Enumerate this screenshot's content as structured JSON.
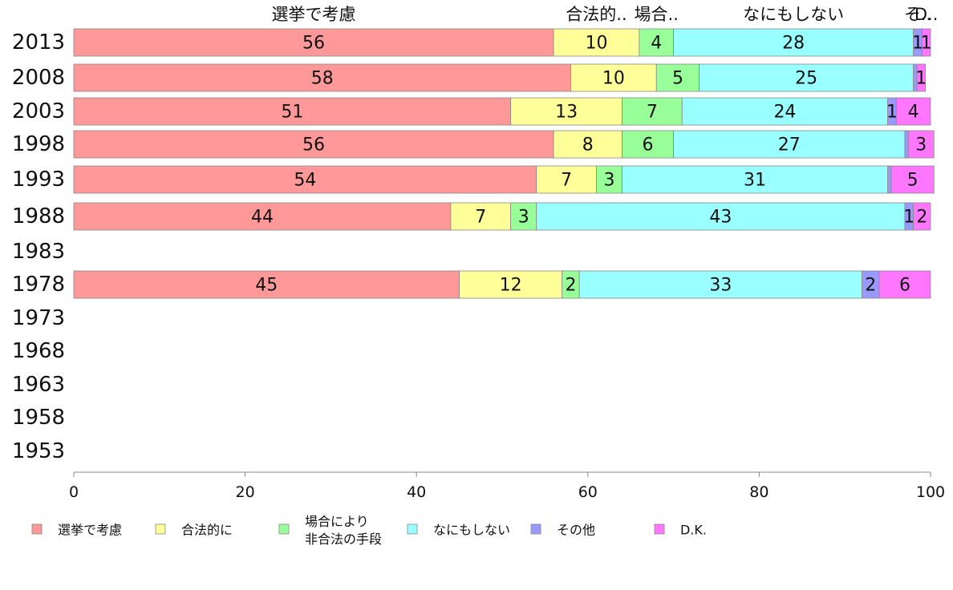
{
  "chart_data": {
    "type": "bar",
    "orientation": "horizontal",
    "stacked": true,
    "categories": [
      "2013",
      "2008",
      "2003",
      "1998",
      "1993",
      "1988",
      "1983",
      "1978",
      "1973",
      "1968",
      "1963",
      "1958",
      "1953"
    ],
    "series": [
      {
        "name": "選挙で考慮",
        "color": "#ff9999",
        "values": [
          56,
          58,
          51,
          56,
          54,
          44,
          null,
          45,
          null,
          null,
          null,
          null,
          null
        ]
      },
      {
        "name": "合法的に",
        "color": "#ffff99",
        "values": [
          10,
          10,
          13,
          8,
          7,
          7,
          null,
          12,
          null,
          null,
          null,
          null,
          null
        ]
      },
      {
        "name": "場合により 非合法の手段",
        "name_lines": [
          "場合により",
          "非合法の手段"
        ],
        "color": "#99ff99",
        "values": [
          4,
          5,
          7,
          6,
          3,
          3,
          null,
          2,
          null,
          null,
          null,
          null,
          null
        ]
      },
      {
        "name": "なにもしない",
        "color": "#99ffff",
        "values": [
          28,
          25,
          24,
          27,
          31,
          43,
          null,
          33,
          null,
          null,
          null,
          null,
          null
        ]
      },
      {
        "name": "その他",
        "color": "#9999ff",
        "values": [
          1,
          0.4,
          1,
          0.4,
          0.4,
          1,
          null,
          2,
          null,
          null,
          null,
          null,
          null
        ]
      },
      {
        "name": "D.K.",
        "color": "#ff77ff",
        "values": [
          1,
          1,
          4,
          3,
          5,
          2,
          null,
          6,
          null,
          null,
          null,
          null,
          null
        ]
      }
    ],
    "data_labels": [
      [
        "56",
        "10",
        "4",
        "28",
        "1",
        "1"
      ],
      [
        "58",
        "10",
        "5",
        "25",
        "",
        "1"
      ],
      [
        "51",
        "13",
        "7",
        "24",
        "1",
        "4"
      ],
      [
        "56",
        "8",
        "6",
        "27",
        "",
        "3"
      ],
      [
        "54",
        "7",
        "3",
        "31",
        "",
        "5"
      ],
      [
        "44",
        "7",
        "3",
        "43",
        "1",
        "2"
      ],
      [
        "",
        "",
        "",
        "",
        "",
        ""
      ],
      [
        "45",
        "12",
        "2",
        "33",
        "2",
        "6"
      ],
      [
        "",
        "",
        "",
        "",
        "",
        ""
      ],
      [
        "",
        "",
        "",
        "",
        "",
        ""
      ],
      [
        "",
        "",
        "",
        "",
        "",
        ""
      ],
      [
        "",
        "",
        "",
        "",
        "",
        ""
      ],
      [
        "",
        "",
        "",
        "",
        "",
        ""
      ]
    ],
    "top_labels": [
      "選挙で考慮",
      "合法的..",
      "場合..",
      "なにもしない",
      "そ..",
      "D.."
    ],
    "xlim": [
      0,
      100
    ],
    "xticks": [
      "0",
      "20",
      "40",
      "60",
      "80",
      "100"
    ],
    "xlabel": "",
    "ylabel": "",
    "title": "",
    "grid": false,
    "legend": "bottom"
  }
}
